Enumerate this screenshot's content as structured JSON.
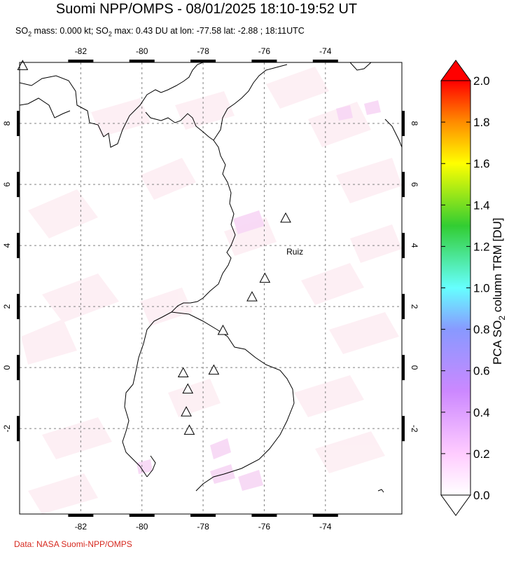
{
  "header": {
    "title": "Suomi NPP/OMPS - 08/01/2025 18:10-19:52 UT",
    "subtitle_parts": [
      "SO",
      "2",
      " mass: 0.000 kt; SO",
      "2",
      " max: 0.43 DU at lon: -77.58 lat: -2.88 ; 18:11UTC"
    ]
  },
  "map": {
    "lon_labels": [
      "-82",
      "-80",
      "-78",
      "-76",
      "-74"
    ],
    "lat_labels": [
      "8",
      "6",
      "4",
      "2",
      "0",
      "-2"
    ],
    "lon_values": [
      -82,
      -80,
      -78,
      -76,
      -74
    ],
    "lat_values": [
      8,
      6,
      4,
      2,
      0,
      -2
    ],
    "lon_range": [
      -84,
      -71.5
    ],
    "lat_range": [
      -4.8,
      10
    ],
    "volcanoes": [
      {
        "lon": -83.9,
        "lat": 9.9
      },
      {
        "lon": -75.3,
        "lat": 4.9
      },
      {
        "lon": -75.98,
        "lat": 2.93
      },
      {
        "lon": -76.4,
        "lat": 2.32
      },
      {
        "lon": -77.35,
        "lat": 1.22
      },
      {
        "lon": -77.65,
        "lat": -0.08
      },
      {
        "lon": -78.65,
        "lat": -0.17
      },
      {
        "lon": -78.5,
        "lat": -0.7
      },
      {
        "lon": -78.55,
        "lat": -1.45
      },
      {
        "lon": -78.45,
        "lat": -2.05
      }
    ],
    "volcano_label": {
      "text": "Ruiz",
      "lon": -75.0,
      "lat": 3.7
    },
    "grid": "dotted"
  },
  "colorbar": {
    "label_main": "PCA SO",
    "label_sub": "2",
    "label_tail": " column TRM [DU]",
    "ticks": [
      "2.0",
      "1.8",
      "1.6",
      "1.4",
      "1.2",
      "1.0",
      "0.8",
      "0.6",
      "0.4",
      "0.2",
      "0.0"
    ],
    "tick_values": [
      2.0,
      1.8,
      1.6,
      1.4,
      1.2,
      1.0,
      0.8,
      0.6,
      0.4,
      0.2,
      0.0
    ],
    "colors": {
      "top": "#ff0000",
      "orange": "#ff8c00",
      "yellow": "#ffff00",
      "green": "#32cd32",
      "cyan": "#66ffff",
      "blue": "#8899ff",
      "violet": "#cc88ff",
      "pink": "#ffccff",
      "bottom": "#ffffff"
    }
  },
  "footer": {
    "credit": "Data: NASA Suomi-NPP/OMPS"
  }
}
